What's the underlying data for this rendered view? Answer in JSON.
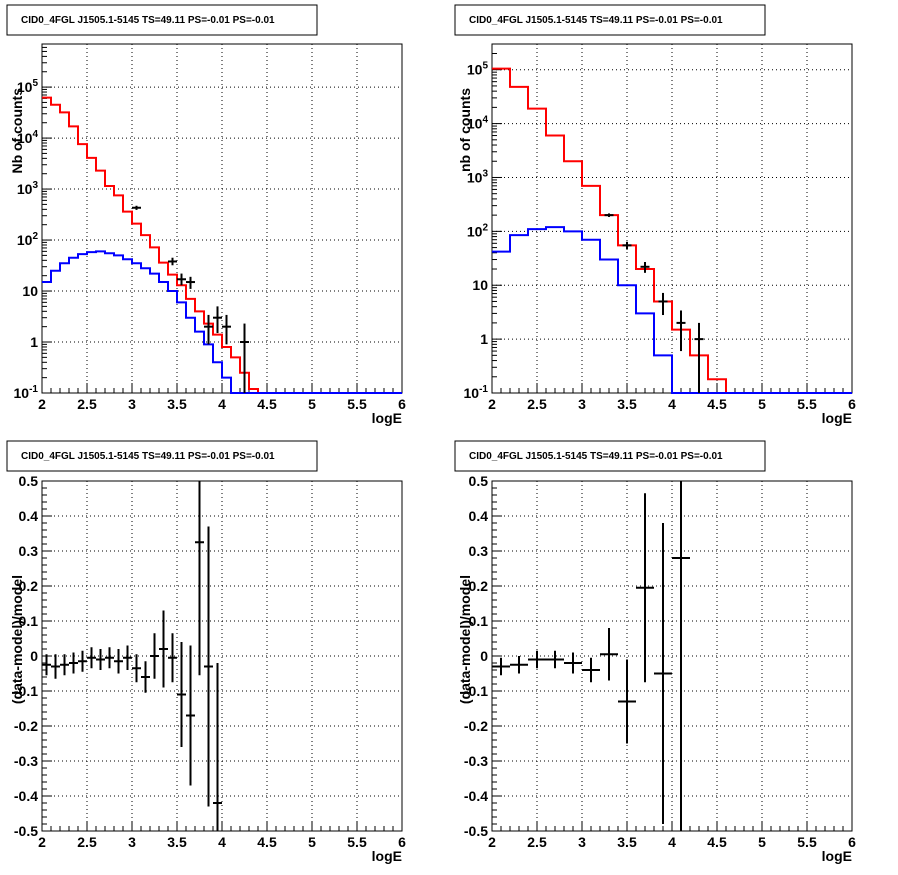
{
  "chart_data": [
    {
      "type": "line",
      "title": "CID0_4FGL J1505.1-5145 TS=49.11 PS=-0.01 PS=-0.01",
      "xlabel": "logE",
      "ylabel": "Nb of counts",
      "xlim": [
        2,
        6
      ],
      "ylim": [
        0.1,
        700000
      ],
      "yscale": "log",
      "grid": true,
      "xticks": [
        "2",
        "2.5",
        "3",
        "3.5",
        "4",
        "4.5",
        "5",
        "5.5",
        "6"
      ],
      "yticks": [
        "10^-1",
        "1",
        "10",
        "10^2",
        "10^3",
        "10^4",
        "10^5"
      ],
      "bin_edges": [
        2.0,
        2.1,
        2.2,
        2.3,
        2.4,
        2.5,
        2.6,
        2.7,
        2.8,
        2.9,
        3.0,
        3.1,
        3.2,
        3.3,
        3.4,
        3.5,
        3.6,
        3.7,
        3.8,
        3.9,
        4.0,
        4.1,
        4.2,
        4.3,
        4.4,
        4.5,
        4.6,
        4.7,
        4.8,
        4.9,
        5.0,
        5.1,
        5.2,
        5.3,
        5.4,
        5.5,
        5.6,
        5.7,
        5.8,
        5.9,
        6.0
      ],
      "series": [
        {
          "color": "#ff0000",
          "values": [
            62000,
            45000,
            32000,
            17000,
            7600,
            4100,
            2300,
            1150,
            750,
            360,
            210,
            125,
            72,
            36,
            21,
            13,
            7,
            4,
            2.3,
            1.4,
            0.8,
            0.5,
            0.25,
            0.12,
            0.1,
            0.1,
            0.1,
            0.1,
            0.1,
            0.1,
            0.1,
            0.1,
            0.1,
            0.1,
            0.1,
            0.1,
            0.1,
            0.1,
            0.1,
            0.1
          ]
        },
        {
          "color": "#0000ff",
          "values": [
            15,
            25,
            35,
            45,
            53,
            58,
            60,
            55,
            50,
            42,
            35,
            28,
            22,
            15,
            10,
            6,
            3,
            1.6,
            0.9,
            0.4,
            0.2,
            0.1,
            0.1,
            0.1,
            0.1,
            0.1,
            0.1,
            0.1,
            0.1,
            0.1,
            0.1,
            0.1,
            0.1,
            0.1,
            0.1,
            0.1,
            0.1,
            0.1,
            0.1,
            0.1
          ]
        }
      ],
      "points": [
        {
          "x": 3.05,
          "y": 430,
          "lo": 390,
          "hi": 470
        },
        {
          "x": 3.45,
          "y": 38,
          "lo": 32,
          "hi": 45
        },
        {
          "x": 3.55,
          "y": 17,
          "lo": 13,
          "hi": 22
        },
        {
          "x": 3.65,
          "y": 15,
          "lo": 11,
          "hi": 19
        },
        {
          "x": 3.85,
          "y": 2,
          "lo": 0.9,
          "hi": 3.4
        },
        {
          "x": 3.95,
          "y": 3,
          "lo": 1.5,
          "hi": 5
        },
        {
          "x": 4.05,
          "y": 2,
          "lo": 0.9,
          "hi": 3.4
        },
        {
          "x": 4.25,
          "y": 1,
          "lo": 0.1,
          "hi": 2.3
        }
      ]
    },
    {
      "type": "line",
      "title": "CID0_4FGL J1505.1-5145 TS=49.11 PS=-0.01 PS=-0.01",
      "xlabel": "logE",
      "ylabel": "nb of counts",
      "xlim": [
        2,
        6
      ],
      "ylim": [
        0.1,
        300000
      ],
      "yscale": "log",
      "grid": true,
      "xticks": [
        "2",
        "2.5",
        "3",
        "3.5",
        "4",
        "4.5",
        "5",
        "5.5",
        "6"
      ],
      "yticks": [
        "10^-1",
        "1",
        "10",
        "10^2",
        "10^3",
        "10^4",
        "10^5"
      ],
      "bin_edges": [
        2.0,
        2.2,
        2.4,
        2.6,
        2.8,
        3.0,
        3.2,
        3.4,
        3.6,
        3.8,
        4.0,
        4.2,
        4.4,
        4.6,
        4.8,
        5.0,
        5.2,
        5.4,
        5.6,
        5.8,
        6.0
      ],
      "series": [
        {
          "color": "#ff0000",
          "values": [
            105000,
            48000,
            19000,
            6000,
            2000,
            700,
            200,
            55,
            20,
            5,
            1.5,
            0.5,
            0.18,
            0.1,
            0.1,
            0.1,
            0.1,
            0.1,
            0.1,
            0.1
          ]
        },
        {
          "color": "#0000ff",
          "values": [
            42,
            85,
            110,
            120,
            100,
            70,
            30,
            10,
            3,
            0.5,
            0.1,
            0.1,
            0.1,
            0.1,
            0.1,
            0.1,
            0.1,
            0.1,
            0.1,
            0.1
          ]
        }
      ],
      "points": [
        {
          "x": 3.3,
          "y": 200,
          "lo": 185,
          "hi": 215
        },
        {
          "x": 3.5,
          "y": 55,
          "lo": 46,
          "hi": 64
        },
        {
          "x": 3.7,
          "y": 22,
          "lo": 17,
          "hi": 27
        },
        {
          "x": 3.9,
          "y": 5,
          "lo": 2.8,
          "hi": 7.2
        },
        {
          "x": 4.1,
          "y": 2,
          "lo": 0.6,
          "hi": 3.4
        },
        {
          "x": 4.3,
          "y": 1,
          "lo": 0.1,
          "hi": 2
        }
      ]
    },
    {
      "type": "scatter",
      "title": "CID0_4FGL J1505.1-5145 TS=49.11 PS=-0.01 PS=-0.01",
      "xlabel": "logE",
      "ylabel": "(data-model)/model",
      "xlim": [
        2,
        6
      ],
      "ylim": [
        -0.5,
        0.5
      ],
      "grid": true,
      "xticks": [
        "2",
        "2.5",
        "3",
        "3.5",
        "4",
        "4.5",
        "5",
        "5.5",
        "6"
      ],
      "yticks": [
        "-0.5",
        "-0.4",
        "-0.3",
        "-0.2",
        "-0.1",
        "0",
        "0.1",
        "0.2",
        "0.3",
        "0.4",
        "0.5"
      ],
      "half_width": 0.05,
      "points": [
        {
          "x": 2.05,
          "y": -0.025,
          "err": 0.03
        },
        {
          "x": 2.15,
          "y": -0.03,
          "err": 0.035
        },
        {
          "x": 2.25,
          "y": -0.025,
          "err": 0.03
        },
        {
          "x": 2.35,
          "y": -0.02,
          "err": 0.03
        },
        {
          "x": 2.45,
          "y": -0.015,
          "err": 0.03
        },
        {
          "x": 2.55,
          "y": -0.005,
          "err": 0.03
        },
        {
          "x": 2.65,
          "y": -0.01,
          "err": 0.03
        },
        {
          "x": 2.75,
          "y": -0.005,
          "err": 0.03
        },
        {
          "x": 2.85,
          "y": -0.015,
          "err": 0.035
        },
        {
          "x": 2.95,
          "y": -0.005,
          "err": 0.035
        },
        {
          "x": 3.05,
          "y": -0.035,
          "err": 0.04
        },
        {
          "x": 3.15,
          "y": -0.06,
          "err": 0.045
        },
        {
          "x": 3.25,
          "y": 0.0,
          "err": 0.065
        },
        {
          "x": 3.35,
          "y": 0.02,
          "err": 0.11
        },
        {
          "x": 3.45,
          "y": -0.005,
          "err": 0.07
        },
        {
          "x": 3.55,
          "y": -0.11,
          "err": 0.15
        },
        {
          "x": 3.65,
          "y": -0.17,
          "err": 0.2
        },
        {
          "x": 3.75,
          "y": 0.325,
          "err": 0.38
        },
        {
          "x": 3.85,
          "y": -0.03,
          "err": 0.4
        },
        {
          "x": 3.95,
          "y": -0.42,
          "err": 0.4
        }
      ]
    },
    {
      "type": "scatter",
      "title": "CID0_4FGL J1505.1-5145 TS=49.11 PS=-0.01 PS=-0.01",
      "xlabel": "logE",
      "ylabel": "(data-model)/model",
      "xlim": [
        2,
        6
      ],
      "ylim": [
        -0.5,
        0.5
      ],
      "grid": true,
      "xticks": [
        "2",
        "2.5",
        "3",
        "3.5",
        "4",
        "4.5",
        "5",
        "5.5",
        "6"
      ],
      "yticks": [
        "-0.5",
        "-0.4",
        "-0.3",
        "-0.2",
        "-0.1",
        "0",
        "0.1",
        "0.2",
        "0.3",
        "0.4",
        "0.5"
      ],
      "half_width": 0.1,
      "points": [
        {
          "x": 2.1,
          "y": -0.03,
          "err": 0.025
        },
        {
          "x": 2.3,
          "y": -0.025,
          "err": 0.025
        },
        {
          "x": 2.5,
          "y": -0.01,
          "err": 0.025
        },
        {
          "x": 2.7,
          "y": -0.01,
          "err": 0.025
        },
        {
          "x": 2.9,
          "y": -0.02,
          "err": 0.03
        },
        {
          "x": 3.1,
          "y": -0.04,
          "err": 0.035
        },
        {
          "x": 3.3,
          "y": 0.005,
          "err": 0.075
        },
        {
          "x": 3.5,
          "y": -0.13,
          "err": 0.12
        },
        {
          "x": 3.7,
          "y": 0.195,
          "err": 0.27
        },
        {
          "x": 3.9,
          "y": -0.05,
          "err": 0.43
        },
        {
          "x": 4.1,
          "y": 0.28,
          "err": 0.78
        }
      ]
    }
  ]
}
